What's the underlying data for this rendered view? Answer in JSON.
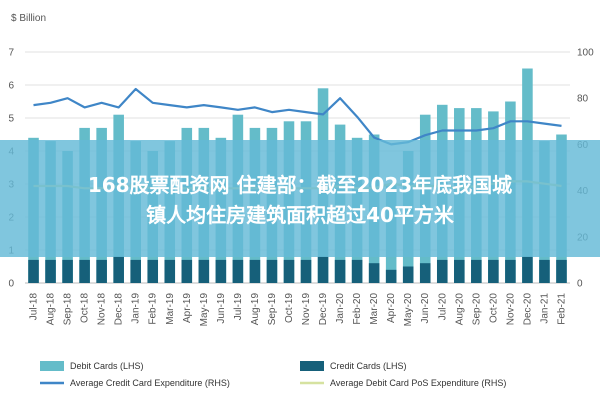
{
  "chart_data": {
    "type": "bar",
    "unit_label": "$ Billion",
    "categories": [
      "Jul-18",
      "Aug-18",
      "Sep-18",
      "Oct-18",
      "Nov-18",
      "Dec-18",
      "Jan-19",
      "Feb-19",
      "Mar-19",
      "Apr-19",
      "May-19",
      "Jun-19",
      "Jul-19",
      "Aug-19",
      "Sep-19",
      "Oct-19",
      "Nov-19",
      "Dec-19",
      "Jan-20",
      "Feb-20",
      "Mar-20",
      "Apr-20",
      "May-20",
      "Jun-20",
      "Jul-20",
      "Aug-20",
      "Sep-20",
      "Oct-20",
      "Nov-20",
      "Dec-20",
      "Jan-21",
      "Feb-21"
    ],
    "left_axis": {
      "range": [
        0,
        7
      ],
      "ticks": [
        "0",
        "1",
        "2",
        "3",
        "4",
        "5",
        "6",
        "7"
      ]
    },
    "right_axis": {
      "range": [
        0,
        100
      ],
      "ticks": [
        "0",
        "20",
        "40",
        "60",
        "80",
        "100"
      ]
    },
    "series": [
      {
        "name": "Debit Cards (LHS)",
        "kind": "bar",
        "axis": "left",
        "color": "#64bcc9",
        "values": [
          4.4,
          4.3,
          4.0,
          4.7,
          4.7,
          5.1,
          4.3,
          4.0,
          4.3,
          4.7,
          4.7,
          4.4,
          5.1,
          4.7,
          4.7,
          4.9,
          4.9,
          5.9,
          4.8,
          4.4,
          4.5,
          3.0,
          4.0,
          5.1,
          5.4,
          5.3,
          5.3,
          5.2,
          5.5,
          6.5,
          4.3,
          4.5
        ]
      },
      {
        "name": "Credit Cards (LHS)",
        "kind": "bar",
        "axis": "left",
        "color": "#16607a",
        "values": [
          0.7,
          0.7,
          0.7,
          0.7,
          0.7,
          0.8,
          0.7,
          0.7,
          0.7,
          0.7,
          0.7,
          0.7,
          0.7,
          0.7,
          0.7,
          0.7,
          0.7,
          0.8,
          0.7,
          0.7,
          0.6,
          0.4,
          0.5,
          0.6,
          0.7,
          0.7,
          0.7,
          0.7,
          0.7,
          0.8,
          0.7,
          0.7
        ]
      },
      {
        "name": "Average Credit Card Expenditure (RHS)",
        "kind": "line",
        "axis": "right",
        "color": "#3f86c7",
        "values": [
          77,
          78,
          80,
          76,
          78,
          76,
          84,
          78,
          77,
          76,
          77,
          76,
          75,
          76,
          74,
          75,
          74,
          73,
          80,
          72,
          63,
          60,
          61,
          64,
          66,
          66,
          66,
          67,
          70,
          70,
          69,
          68
        ]
      },
      {
        "name": "Average Debit Card PoS Expenditure (RHS)",
        "kind": "line",
        "axis": "right",
        "color": "#d6e2a0",
        "values": [
          42,
          42,
          42,
          41,
          41,
          42,
          42,
          41,
          41,
          41,
          41,
          41,
          41,
          41,
          41,
          41,
          41,
          41,
          42,
          41,
          41,
          43,
          42,
          42,
          42,
          41,
          42,
          43,
          44,
          44,
          43,
          42
        ]
      }
    ]
  },
  "overlay": {
    "line1": "168股票配资网 住建部：截至2023年底我国城",
    "line2": "镇人均住房建筑面积超过40平方米"
  }
}
